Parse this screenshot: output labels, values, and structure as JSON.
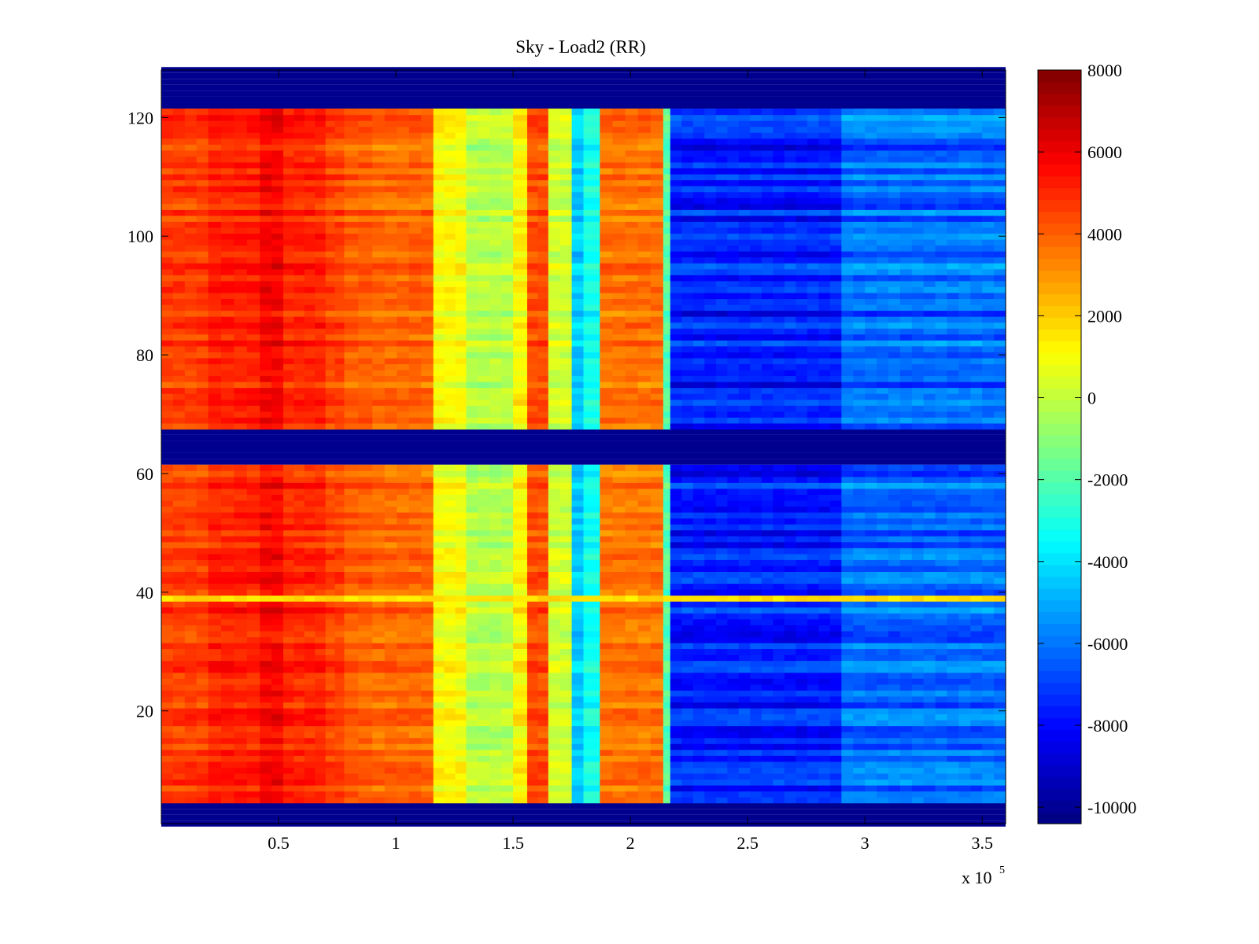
{
  "chart_data": {
    "type": "heatmap",
    "title": "Sky - Load2 (RR)",
    "xlabel": "",
    "ylabel": "",
    "x_multiplier_base": "x 10",
    "x_multiplier_exp": "5",
    "xlim": [
      0,
      3.6
    ],
    "ylim": [
      1,
      128
    ],
    "x_ticks": [
      0.5,
      1,
      1.5,
      2,
      2.5,
      3,
      3.5
    ],
    "x_tick_labels": [
      "0.5",
      "1",
      "1.5",
      "2",
      "2.5",
      "3",
      "3.5"
    ],
    "y_ticks": [
      20,
      40,
      60,
      80,
      100,
      120
    ],
    "y_tick_labels": [
      "20",
      "40",
      "60",
      "80",
      "100",
      "120"
    ],
    "colorbar": {
      "colormap": "jet",
      "range": [
        -10400,
        8000
      ],
      "ticks": [
        8000,
        6000,
        4000,
        2000,
        0,
        -2000,
        -4000,
        -6000,
        -8000,
        -10000
      ],
      "tick_labels": [
        "8000",
        "6000",
        "4000",
        "2000",
        "0",
        "-2000",
        "-4000",
        "-6000",
        "-8000",
        "-10000"
      ]
    },
    "masked_row_bands": [
      [
        1,
        4
      ],
      [
        61.5,
        67.5
      ],
      [
        121.5,
        128
      ]
    ],
    "column_profile": [
      {
        "x_start": 0.0,
        "x_end": 0.2,
        "value": 4600
      },
      {
        "x_start": 0.2,
        "x_end": 0.42,
        "value": 5100
      },
      {
        "x_start": 0.42,
        "x_end": 0.52,
        "value": 5700
      },
      {
        "x_start": 0.52,
        "x_end": 0.7,
        "value": 5000
      },
      {
        "x_start": 0.7,
        "x_end": 0.78,
        "value": 4500
      },
      {
        "x_start": 0.78,
        "x_end": 0.9,
        "value": 4000
      },
      {
        "x_start": 0.9,
        "x_end": 1.16,
        "value": 3800
      },
      {
        "x_start": 1.16,
        "x_end": 1.3,
        "value": 1000
      },
      {
        "x_start": 1.3,
        "x_end": 1.5,
        "value": -200
      },
      {
        "x_start": 1.5,
        "x_end": 1.56,
        "value": 1200
      },
      {
        "x_start": 1.56,
        "x_end": 1.65,
        "value": 4300
      },
      {
        "x_start": 1.65,
        "x_end": 1.75,
        "value": 200
      },
      {
        "x_start": 1.75,
        "x_end": 1.8,
        "value": -4500
      },
      {
        "x_start": 1.8,
        "x_end": 1.87,
        "value": -3200
      },
      {
        "x_start": 1.87,
        "x_end": 2.14,
        "value": 3600
      },
      {
        "x_start": 2.14,
        "x_end": 2.17,
        "value": -2000
      },
      {
        "x_start": 2.17,
        "x_end": 2.9,
        "value": -7600
      },
      {
        "x_start": 2.9,
        "x_end": 3.6,
        "value": -6200
      }
    ],
    "highlighted_rows": [
      {
        "y": 39,
        "value_left": 1500,
        "value_right": 1800
      }
    ],
    "colors": {
      "jet_low": "#00007f",
      "jet_high": "#7f0000",
      "masked": "#00008f",
      "axis": "#000000"
    }
  }
}
